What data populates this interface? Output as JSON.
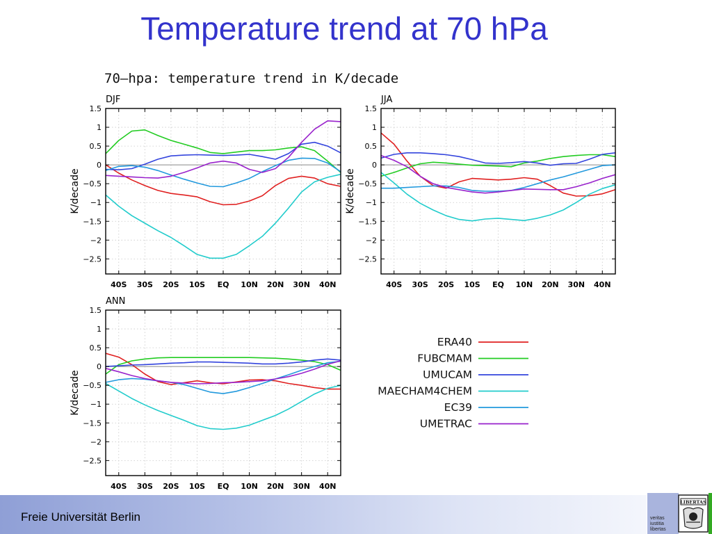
{
  "slide": {
    "title": "Temperature trend at 70 hPa",
    "footer": "Freie Universität Berlin",
    "logo_motto": [
      "veritas",
      "iustitia",
      "libertas"
    ],
    "logo_text": "LIBERTAS"
  },
  "chart_data": {
    "type": "line",
    "title": "70—hpa: temperature trend in K/decade",
    "ylabel": "K/decade",
    "ylim": [
      -2.9,
      1.5
    ],
    "xlim": [
      -45,
      45
    ],
    "yticks": [
      1.5,
      1,
      0.5,
      0,
      -0.5,
      -1,
      -1.5,
      -2,
      -2.5
    ],
    "ytick_labels": [
      "1.5",
      "1",
      "0.5",
      "0",
      "−0.5",
      "−1",
      "−1.5",
      "−2",
      "−2.5"
    ],
    "xticks": [
      -40,
      -30,
      -20,
      -10,
      0,
      10,
      20,
      30,
      40
    ],
    "xtick_labels": [
      "40S",
      "30S",
      "20S",
      "10S",
      "EQ",
      "10N",
      "20N",
      "30N",
      "40N"
    ],
    "grid": "dotted",
    "legend": [
      {
        "name": "ERA40",
        "color": "#e02020"
      },
      {
        "name": "FUBCMAM",
        "color": "#22cc22"
      },
      {
        "name": "UMUCAM",
        "color": "#3344dd"
      },
      {
        "name": "MAECHAM4CHEM",
        "color": "#22cccc"
      },
      {
        "name": "EC39",
        "color": "#2299dd"
      },
      {
        "name": "UMETRAC",
        "color": "#9922cc"
      }
    ],
    "x": [
      -45,
      -40,
      -35,
      -30,
      -25,
      -20,
      -15,
      -10,
      -5,
      0,
      5,
      10,
      15,
      20,
      25,
      30,
      35,
      40,
      45
    ],
    "panels": [
      {
        "label": "DJF",
        "series": [
          {
            "name": "ERA40",
            "values": [
              0.0,
              -0.22,
              -0.4,
              -0.55,
              -0.68,
              -0.76,
              -0.8,
              -0.85,
              -0.98,
              -1.06,
              -1.05,
              -0.96,
              -0.82,
              -0.55,
              -0.36,
              -0.3,
              -0.35,
              -0.5,
              -0.57
            ]
          },
          {
            "name": "FUBCMAM",
            "values": [
              0.3,
              0.65,
              0.9,
              0.93,
              0.78,
              0.65,
              0.55,
              0.45,
              0.33,
              0.3,
              0.34,
              0.38,
              0.38,
              0.4,
              0.45,
              0.48,
              0.38,
              0.1,
              -0.2
            ]
          },
          {
            "name": "UMUCAM",
            "values": [
              -0.12,
              -0.13,
              -0.1,
              0.02,
              0.15,
              0.24,
              0.26,
              0.27,
              0.26,
              0.25,
              0.26,
              0.28,
              0.22,
              0.15,
              0.3,
              0.55,
              0.6,
              0.5,
              0.32
            ]
          },
          {
            "name": "MAECHAM4CHEM",
            "values": [
              -0.8,
              -1.1,
              -1.35,
              -1.55,
              -1.75,
              -1.93,
              -2.15,
              -2.38,
              -2.48,
              -2.48,
              -2.38,
              -2.15,
              -1.9,
              -1.55,
              -1.15,
              -0.72,
              -0.45,
              -0.33,
              -0.25
            ]
          },
          {
            "name": "EC39",
            "values": [
              -0.15,
              -0.04,
              -0.02,
              -0.06,
              -0.15,
              -0.27,
              -0.38,
              -0.48,
              -0.57,
              -0.58,
              -0.48,
              -0.36,
              -0.18,
              -0.02,
              0.12,
              0.18,
              0.17,
              0.05,
              -0.18
            ]
          },
          {
            "name": "UMETRAC",
            "values": [
              -0.28,
              -0.3,
              -0.32,
              -0.34,
              -0.35,
              -0.3,
              -0.2,
              -0.08,
              0.05,
              0.1,
              0.05,
              -0.12,
              -0.2,
              -0.1,
              0.2,
              0.6,
              0.95,
              1.17,
              1.15
            ]
          }
        ]
      },
      {
        "label": "JJA",
        "series": [
          {
            "name": "ERA40",
            "values": [
              0.85,
              0.55,
              0.1,
              -0.3,
              -0.55,
              -0.62,
              -0.45,
              -0.36,
              -0.38,
              -0.4,
              -0.38,
              -0.34,
              -0.38,
              -0.55,
              -0.75,
              -0.83,
              -0.82,
              -0.77,
              -0.66
            ]
          },
          {
            "name": "FUBCMAM",
            "values": [
              -0.3,
              -0.2,
              -0.08,
              0.03,
              0.07,
              0.05,
              0.02,
              -0.01,
              -0.02,
              -0.03,
              -0.05,
              0.05,
              0.1,
              0.17,
              0.22,
              0.25,
              0.27,
              0.27,
              0.22
            ]
          },
          {
            "name": "UMUCAM",
            "values": [
              0.18,
              0.28,
              0.32,
              0.32,
              0.3,
              0.27,
              0.22,
              0.14,
              0.05,
              0.04,
              0.06,
              0.09,
              0.05,
              -0.01,
              0.03,
              0.04,
              0.15,
              0.28,
              0.32
            ]
          },
          {
            "name": "MAECHAM4CHEM",
            "values": [
              -0.2,
              -0.48,
              -0.78,
              -1.02,
              -1.2,
              -1.35,
              -1.45,
              -1.49,
              -1.44,
              -1.42,
              -1.45,
              -1.48,
              -1.42,
              -1.33,
              -1.2,
              -1.0,
              -0.78,
              -0.63,
              -0.53
            ]
          },
          {
            "name": "EC39",
            "values": [
              -0.62,
              -0.62,
              -0.6,
              -0.58,
              -0.56,
              -0.56,
              -0.6,
              -0.68,
              -0.7,
              -0.7,
              -0.68,
              -0.6,
              -0.5,
              -0.4,
              -0.32,
              -0.22,
              -0.12,
              -0.02,
              0.0
            ]
          },
          {
            "name": "UMETRAC",
            "values": [
              0.25,
              0.12,
              -0.05,
              -0.3,
              -0.5,
              -0.6,
              -0.66,
              -0.72,
              -0.75,
              -0.72,
              -0.68,
              -0.64,
              -0.65,
              -0.66,
              -0.66,
              -0.58,
              -0.48,
              -0.36,
              -0.26
            ]
          }
        ]
      },
      {
        "label": "ANN",
        "series": [
          {
            "name": "ERA40",
            "values": [
              0.35,
              0.25,
              0.05,
              -0.2,
              -0.4,
              -0.48,
              -0.43,
              -0.38,
              -0.43,
              -0.46,
              -0.41,
              -0.36,
              -0.35,
              -0.38,
              -0.45,
              -0.5,
              -0.56,
              -0.6,
              -0.6
            ]
          },
          {
            "name": "FUBCMAM",
            "values": [
              -0.2,
              0.05,
              0.15,
              0.2,
              0.23,
              0.24,
              0.24,
              0.24,
              0.24,
              0.24,
              0.24,
              0.24,
              0.23,
              0.22,
              0.2,
              0.17,
              0.13,
              0.05,
              -0.1
            ]
          },
          {
            "name": "UMUCAM",
            "values": [
              0.0,
              0.02,
              0.04,
              0.05,
              0.07,
              0.09,
              0.1,
              0.12,
              0.12,
              0.11,
              0.1,
              0.09,
              0.07,
              0.07,
              0.09,
              0.12,
              0.17,
              0.2,
              0.17
            ]
          },
          {
            "name": "MAECHAM4CHEM",
            "values": [
              -0.45,
              -0.65,
              -0.85,
              -1.02,
              -1.17,
              -1.3,
              -1.43,
              -1.57,
              -1.65,
              -1.67,
              -1.64,
              -1.56,
              -1.43,
              -1.3,
              -1.13,
              -0.93,
              -0.73,
              -0.58,
              -0.5
            ]
          },
          {
            "name": "EC39",
            "values": [
              -0.42,
              -0.35,
              -0.32,
              -0.34,
              -0.38,
              -0.42,
              -0.48,
              -0.58,
              -0.68,
              -0.72,
              -0.66,
              -0.56,
              -0.45,
              -0.33,
              -0.22,
              -0.1,
              0.0,
              0.1,
              0.14
            ]
          },
          {
            "name": "UMETRAC",
            "values": [
              -0.05,
              -0.14,
              -0.24,
              -0.32,
              -0.38,
              -0.42,
              -0.44,
              -0.46,
              -0.45,
              -0.43,
              -0.42,
              -0.4,
              -0.38,
              -0.33,
              -0.27,
              -0.18,
              -0.07,
              0.06,
              0.15
            ]
          }
        ]
      }
    ]
  }
}
